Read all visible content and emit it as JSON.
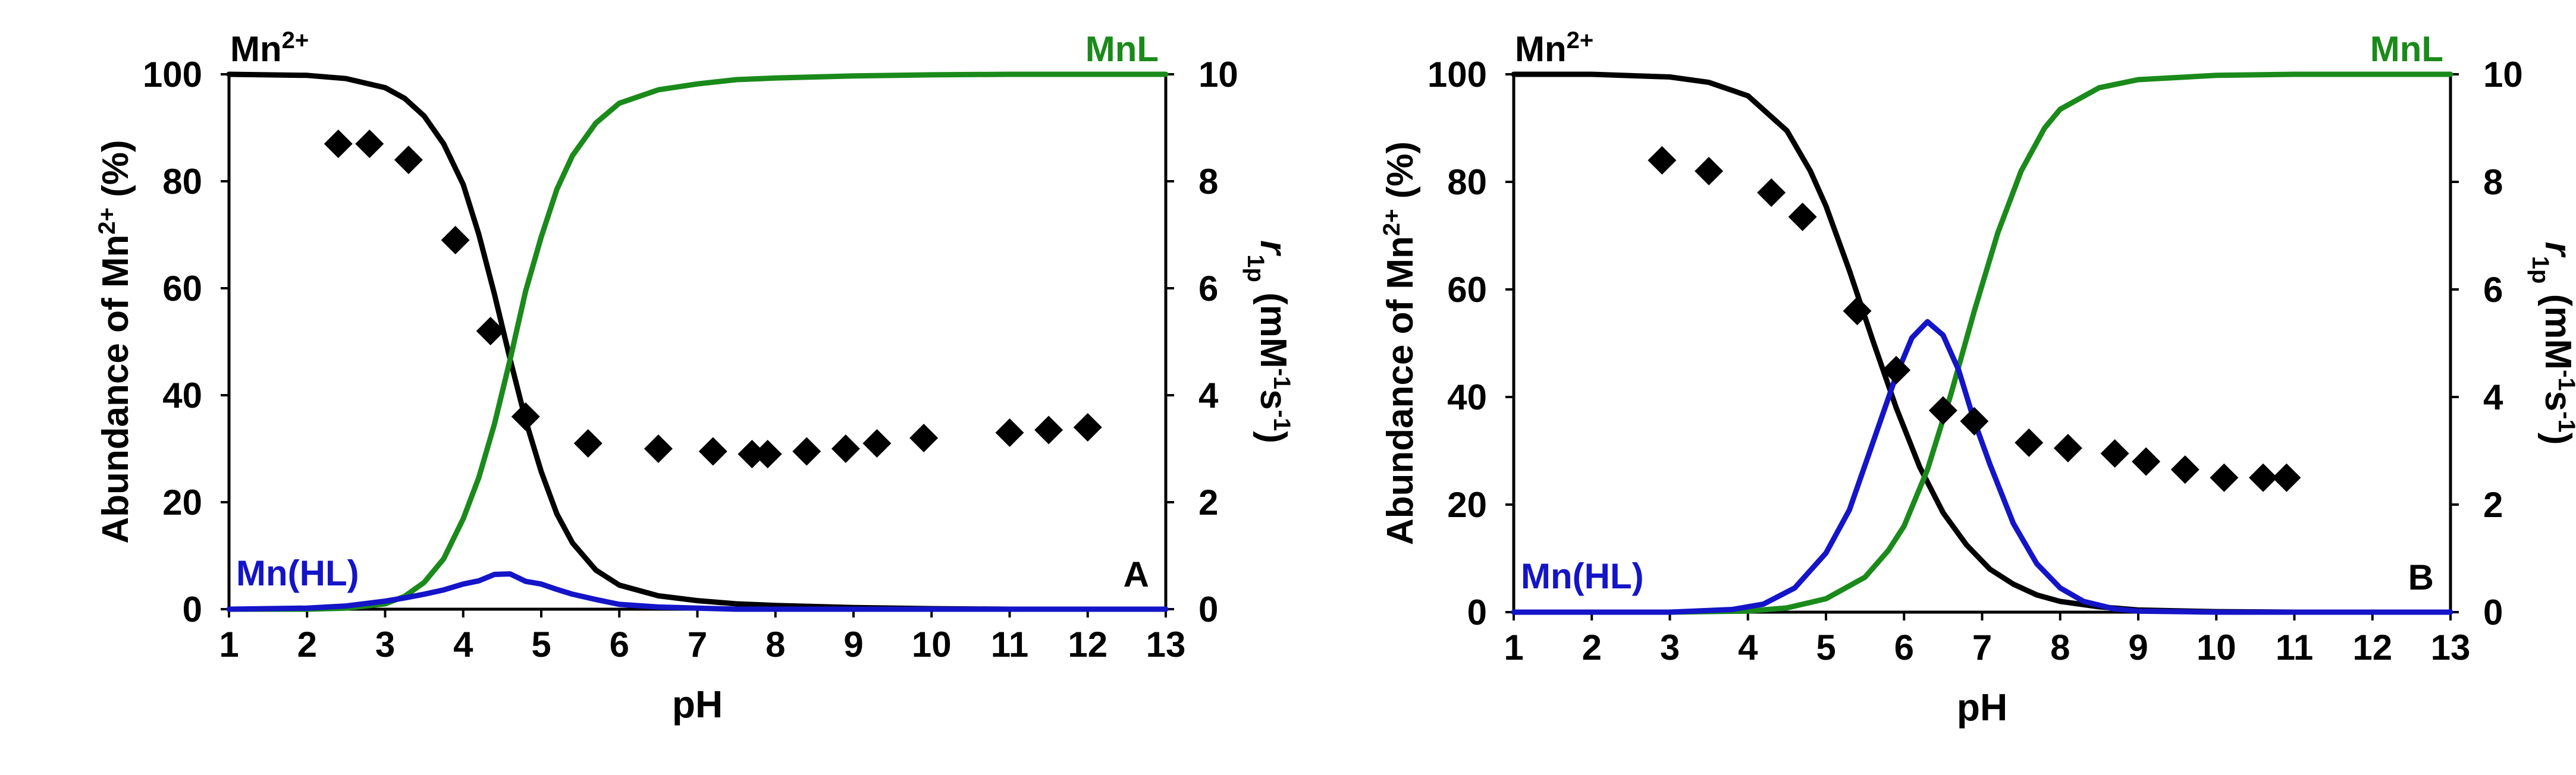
{
  "chart_data": [
    {
      "type": "line",
      "panel_letter": "A",
      "xlabel": "pH",
      "ylabel": "Abundance of Mn2+ (%)",
      "y2label": "r1p (mM-1s-1)",
      "xlim": [
        1,
        13
      ],
      "ylim": [
        0,
        100
      ],
      "y2lim": [
        0,
        10
      ],
      "xticks": [
        "1",
        "2",
        "3",
        "4",
        "5",
        "6",
        "7",
        "8",
        "9",
        "10",
        "11",
        "12",
        "13"
      ],
      "yticks": [
        "0",
        "20",
        "40",
        "60",
        "80",
        "100"
      ],
      "y2ticks": [
        "0",
        "2",
        "4",
        "6",
        "8",
        "10"
      ],
      "grid": false,
      "series": [
        {
          "name": "Mn2+",
          "color": "#000000",
          "axis": "left",
          "x": [
            1.0,
            2.0,
            2.5,
            3.0,
            3.25,
            3.5,
            3.75,
            4.0,
            4.2,
            4.4,
            4.6,
            4.8,
            5.0,
            5.2,
            5.4,
            5.7,
            6.0,
            6.5,
            7.0,
            7.5,
            8.0,
            9.0,
            10.0,
            11.0,
            12.0,
            13.0
          ],
          "y": [
            100.0,
            99.8,
            99.2,
            97.5,
            95.5,
            92.2,
            87.0,
            79.4,
            70.1,
            58.9,
            46.8,
            35.3,
            25.7,
            17.8,
            12.4,
            7.3,
            4.5,
            2.5,
            1.6,
            1.0,
            0.7,
            0.3,
            0.1,
            0.0,
            0.0,
            0.0
          ]
        },
        {
          "name": "MnL",
          "color": "#1a8a1a",
          "axis": "left",
          "x": [
            1.0,
            2.0,
            2.5,
            3.0,
            3.25,
            3.5,
            3.75,
            4.0,
            4.2,
            4.4,
            4.6,
            4.8,
            5.0,
            5.2,
            5.4,
            5.7,
            6.0,
            6.5,
            7.0,
            7.5,
            8.0,
            9.0,
            10.0,
            11.0,
            12.0,
            13.0
          ],
          "y": [
            0.0,
            0.0,
            0.2,
            1.0,
            2.4,
            5.0,
            9.4,
            16.9,
            24.6,
            34.6,
            46.6,
            59.5,
            69.6,
            78.5,
            84.8,
            90.9,
            94.6,
            97.1,
            98.2,
            99.0,
            99.3,
            99.7,
            99.9,
            100.0,
            100.0,
            100.0
          ]
        },
        {
          "name": "Mn(HL)",
          "color": "#1414c8",
          "axis": "left",
          "x": [
            1.0,
            2.0,
            2.5,
            3.0,
            3.25,
            3.5,
            3.75,
            4.0,
            4.2,
            4.4,
            4.6,
            4.8,
            5.0,
            5.2,
            5.4,
            5.7,
            6.0,
            6.5,
            7.0,
            7.5,
            8.0,
            9.0,
            10.0,
            11.0,
            12.0,
            13.0
          ],
          "y": [
            0.0,
            0.2,
            0.6,
            1.5,
            2.1,
            2.8,
            3.6,
            4.7,
            5.3,
            6.5,
            6.6,
            5.2,
            4.7,
            3.7,
            2.8,
            1.8,
            0.9,
            0.4,
            0.2,
            0.0,
            0.0,
            0.0,
            0.0,
            0.0,
            0.0,
            0.0
          ]
        },
        {
          "name": "r1p",
          "color": "#000000",
          "axis": "right",
          "marker": "diamond",
          "x": [
            2.4,
            2.8,
            3.3,
            3.9,
            4.35,
            4.8,
            5.6,
            6.5,
            7.2,
            7.7,
            7.9,
            8.4,
            8.9,
            9.3,
            9.9,
            11.0,
            11.5,
            12.0
          ],
          "y": [
            8.7,
            8.7,
            8.4,
            6.9,
            5.2,
            3.6,
            3.1,
            3.0,
            2.95,
            2.9,
            2.9,
            2.95,
            3.0,
            3.1,
            3.2,
            3.3,
            3.35,
            3.4
          ]
        }
      ],
      "labels": {
        "mn2": "Mn",
        "mn2_sup": "2+",
        "mnl": "MnL",
        "mnhl": "Mn(HL)"
      }
    },
    {
      "type": "line",
      "panel_letter": "B",
      "xlabel": "pH",
      "ylabel": "Abundance of Mn2+ (%)",
      "y2label": "r1p (mM-1s-1)",
      "xlim": [
        1,
        13
      ],
      "ylim": [
        0,
        100
      ],
      "y2lim": [
        0,
        10
      ],
      "xticks": [
        "1",
        "2",
        "3",
        "4",
        "5",
        "6",
        "7",
        "8",
        "9",
        "10",
        "11",
        "12",
        "13"
      ],
      "yticks": [
        "0",
        "20",
        "40",
        "60",
        "80",
        "100"
      ],
      "y2ticks": [
        "0",
        "2",
        "4",
        "6",
        "8",
        "10"
      ],
      "grid": false,
      "series": [
        {
          "name": "Mn2+",
          "color": "#000000",
          "axis": "left",
          "x": [
            1.0,
            2.0,
            3.0,
            3.5,
            4.0,
            4.5,
            4.8,
            5.0,
            5.3,
            5.6,
            5.9,
            6.2,
            6.5,
            6.8,
            7.1,
            7.4,
            7.7,
            8.0,
            8.5,
            9.0,
            10.0,
            11.0,
            12.0,
            13.0
          ],
          "y": [
            100.0,
            100.0,
            99.5,
            98.5,
            96.0,
            89.5,
            82.0,
            75.5,
            63.5,
            50.5,
            38.0,
            27.0,
            18.5,
            12.5,
            8.0,
            5.2,
            3.2,
            2.0,
            1.0,
            0.4,
            0.1,
            0.0,
            0.0,
            0.0
          ]
        },
        {
          "name": "MnL",
          "color": "#1a8a1a",
          "axis": "left",
          "x": [
            1.0,
            2.0,
            3.0,
            4.0,
            4.5,
            5.0,
            5.5,
            5.8,
            6.0,
            6.3,
            6.6,
            6.9,
            7.2,
            7.5,
            7.8,
            8.0,
            8.5,
            9.0,
            10.0,
            11.0,
            12.0,
            13.0
          ],
          "y": [
            0.0,
            0.0,
            0.0,
            0.2,
            0.8,
            2.5,
            6.5,
            11.5,
            16.0,
            26.5,
            40.5,
            56.0,
            70.5,
            82.0,
            90.0,
            93.5,
            97.5,
            99.0,
            99.8,
            100.0,
            100.0,
            100.0
          ]
        },
        {
          "name": "Mn(HL)",
          "color": "#1414c8",
          "axis": "left",
          "x": [
            1.0,
            2.0,
            3.0,
            3.8,
            4.2,
            4.6,
            5.0,
            5.3,
            5.6,
            5.9,
            6.1,
            6.3,
            6.5,
            6.7,
            6.9,
            7.1,
            7.4,
            7.7,
            8.0,
            8.3,
            8.7,
            9.0,
            10.0,
            11.0,
            12.0,
            13.0
          ],
          "y": [
            0.0,
            0.0,
            0.0,
            0.5,
            1.5,
            4.5,
            11.0,
            19.0,
            31.5,
            44.0,
            51.0,
            54.0,
            51.5,
            45.0,
            35.5,
            27.5,
            16.5,
            9.0,
            4.5,
            2.0,
            0.6,
            0.2,
            0.0,
            0.0,
            0.0,
            0.0
          ]
        },
        {
          "name": "r1p",
          "color": "#000000",
          "axis": "right",
          "marker": "diamond",
          "x": [
            2.9,
            3.5,
            4.3,
            4.7,
            5.4,
            5.9,
            6.5,
            6.9,
            7.6,
            8.1,
            8.7,
            9.1,
            9.6,
            10.1,
            10.6,
            10.9
          ],
          "y": [
            8.4,
            8.2,
            7.8,
            7.35,
            5.6,
            4.5,
            3.75,
            3.55,
            3.15,
            3.05,
            2.95,
            2.8,
            2.65,
            2.5,
            2.5,
            2.5
          ]
        }
      ],
      "labels": {
        "mn2": "Mn",
        "mn2_sup": "2+",
        "mnl": "MnL",
        "mnhl": "Mn(HL)"
      }
    }
  ]
}
